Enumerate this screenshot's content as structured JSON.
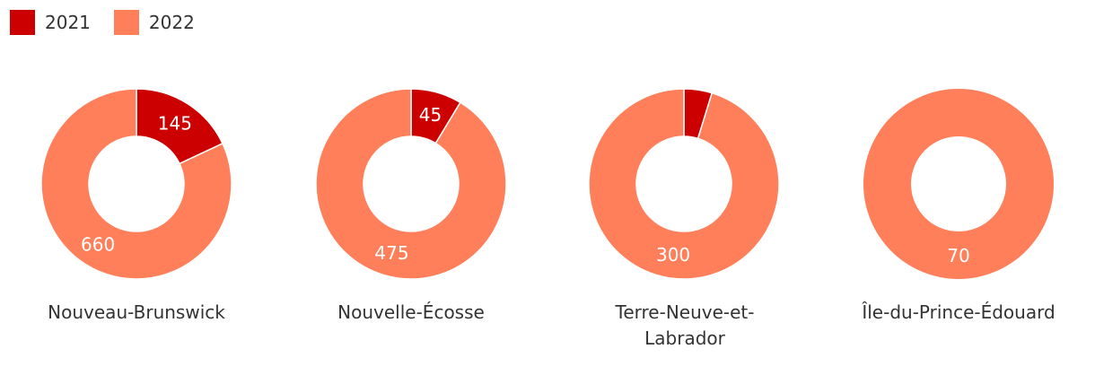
{
  "chart_data": {
    "type": "pie",
    "variant": "donut",
    "legend": {
      "placement": "top-left",
      "entries": [
        {
          "name": "2021",
          "color": "#cc0000"
        },
        {
          "name": "2022",
          "color": "#ff7f5a"
        }
      ]
    },
    "series_names": [
      "2021",
      "2022"
    ],
    "charts": [
      {
        "category": "Nouveau-Brunswick",
        "values": [
          145,
          660
        ],
        "labels": [
          "145",
          "660"
        ]
      },
      {
        "category": "Nouvelle-Écosse",
        "values": [
          45,
          475
        ],
        "labels": [
          "45",
          "475"
        ]
      },
      {
        "category": "Terre-Neuve-et-Labrador",
        "values": [
          15,
          300
        ],
        "labels": [
          "",
          "300"
        ]
      },
      {
        "category": "Île-du-Prince-Édouard",
        "values": [
          0,
          70
        ],
        "labels": [
          "",
          "70"
        ]
      }
    ]
  }
}
